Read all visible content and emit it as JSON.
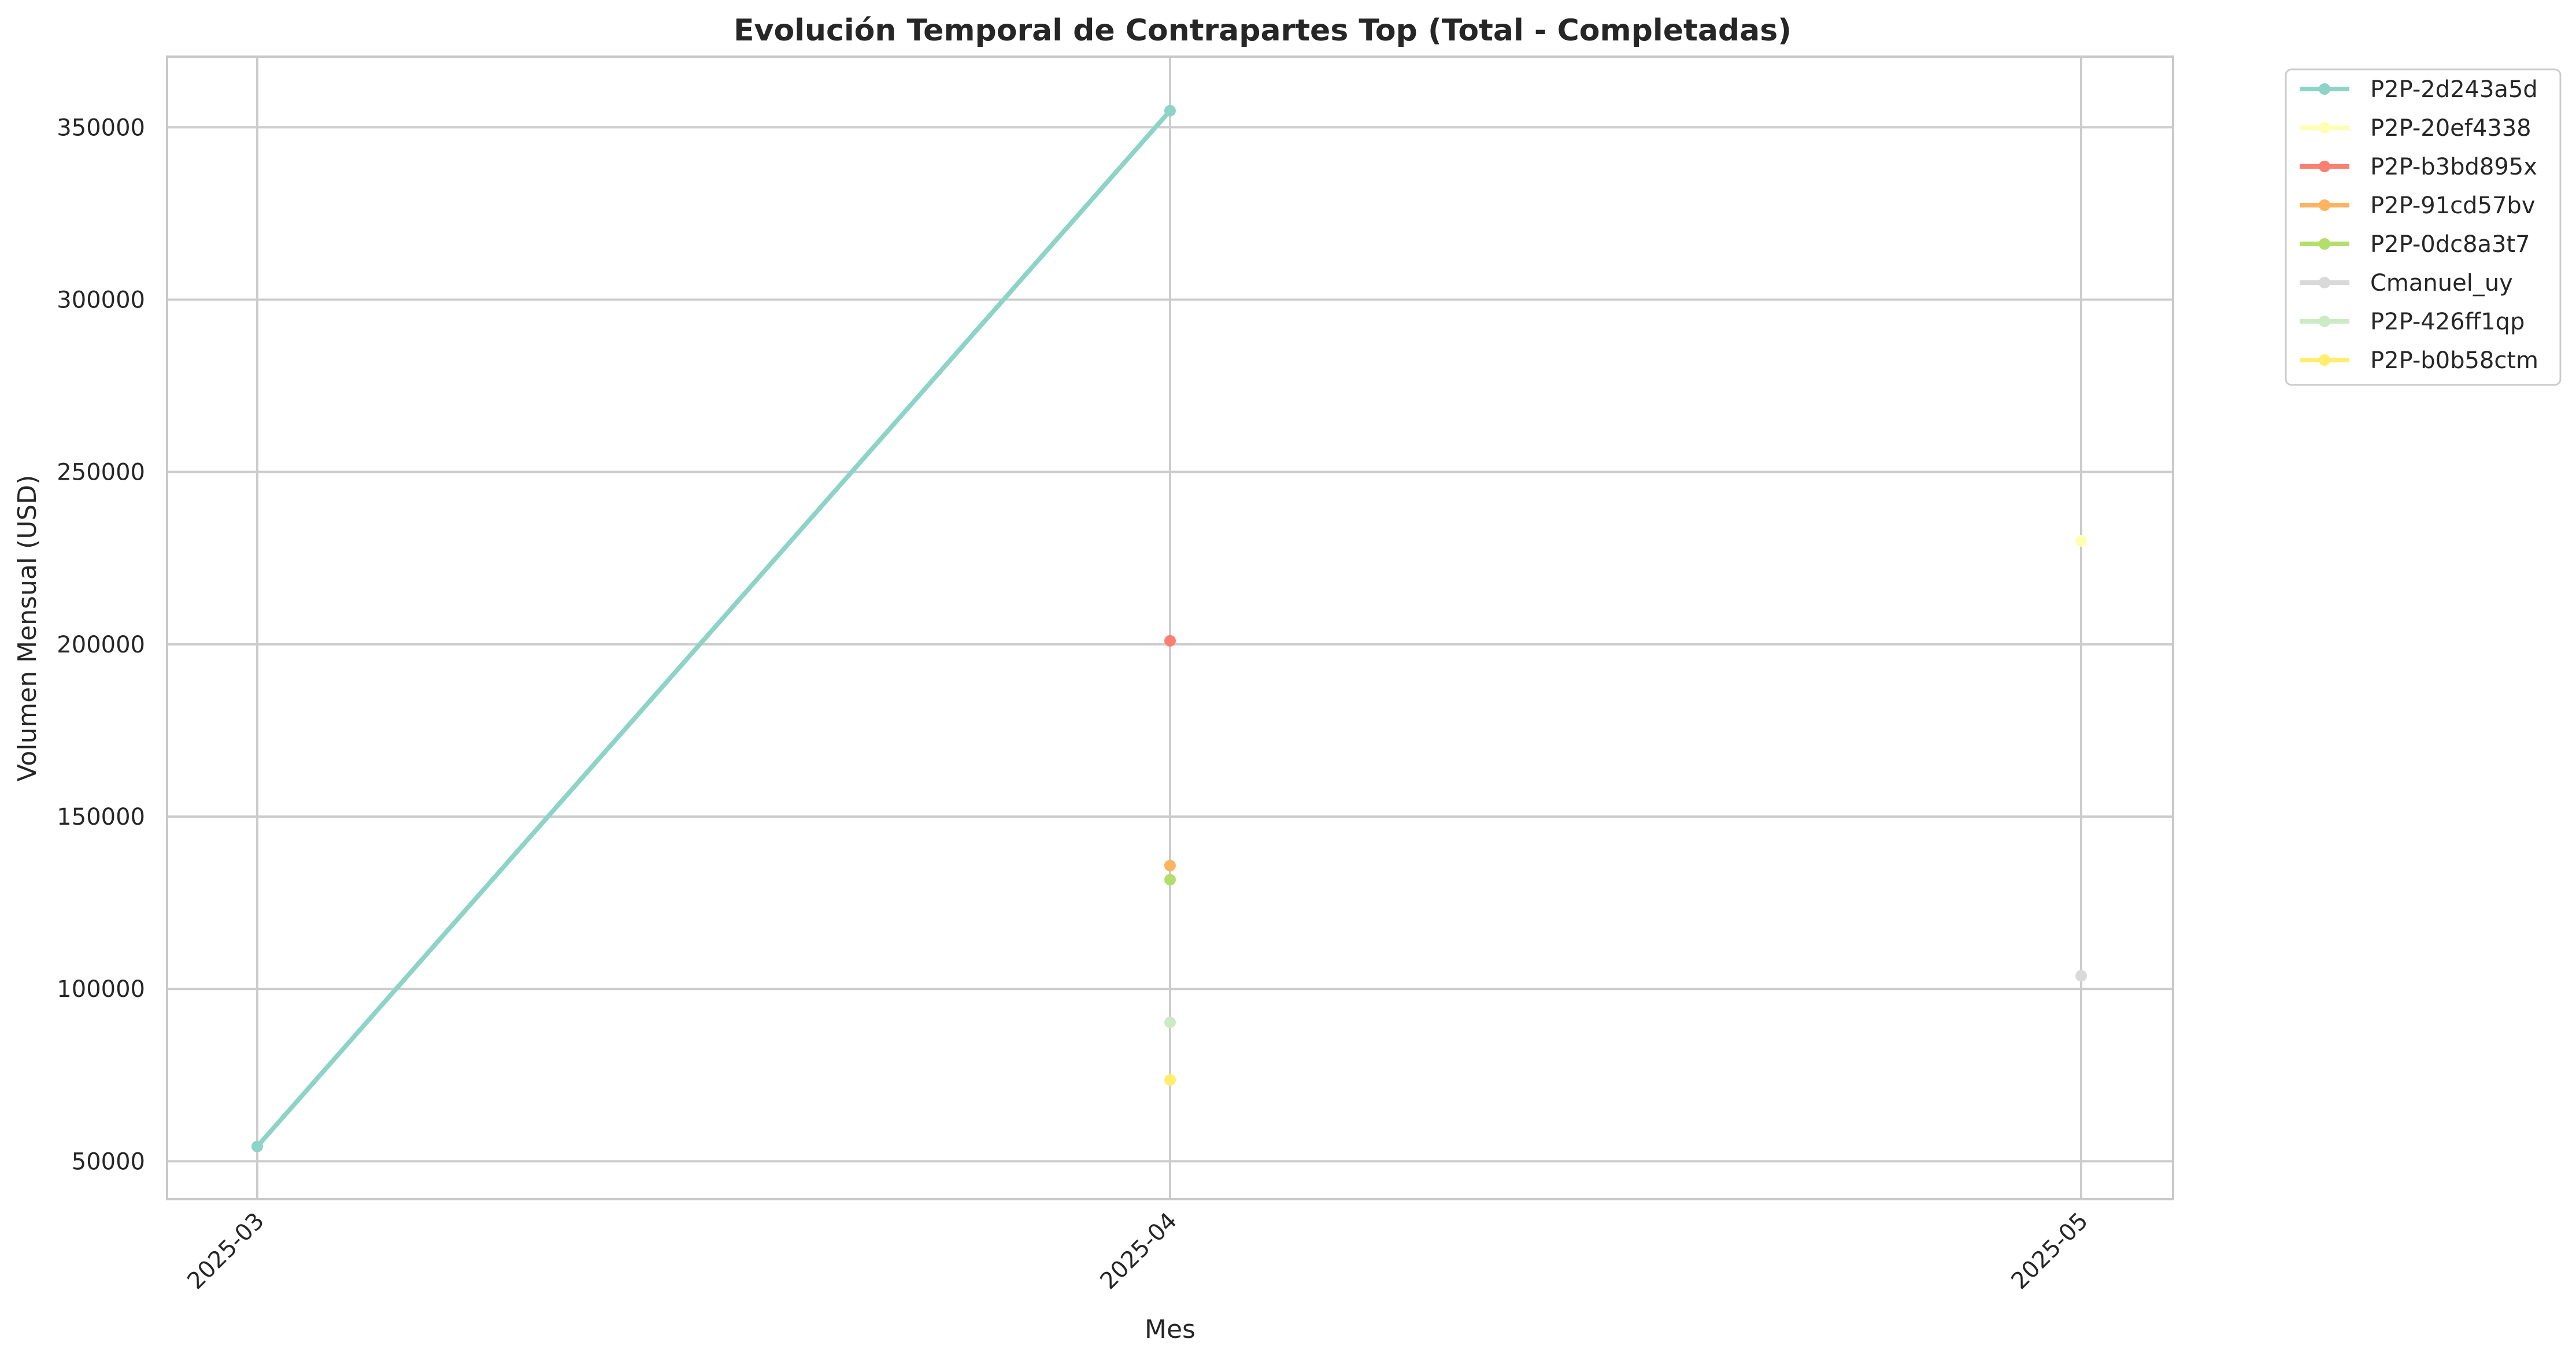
{
  "chart_data": {
    "type": "line",
    "title": "Evolución Temporal de Contrapartes Top (Total - Completadas)",
    "xlabel": "Mes",
    "ylabel": "Volumen Mensual (USD)",
    "x": [
      "2025-03",
      "2025-04",
      "2025-05"
    ],
    "yticks": [
      50000,
      100000,
      150000,
      200000,
      250000,
      300000,
      350000
    ],
    "ylim": [
      39000,
      370500
    ],
    "grid": true,
    "legend_position": "outside-top-right",
    "series": [
      {
        "name": "P2P-2d243a5d",
        "color": "#8dd3c7",
        "values": [
          54300,
          354800,
          null
        ]
      },
      {
        "name": "P2P-20ef4338",
        "color": "#ffffb3",
        "values": [
          null,
          null,
          230000
        ]
      },
      {
        "name": "P2P-b3bd895x",
        "color": "#fb8072",
        "values": [
          null,
          201000,
          null
        ]
      },
      {
        "name": "P2P-91cd57bv",
        "color": "#fdb462",
        "values": [
          null,
          135800,
          null
        ]
      },
      {
        "name": "P2P-0dc8a3t7",
        "color": "#b3de69",
        "values": [
          null,
          131700,
          null
        ]
      },
      {
        "name": "Cmanuel_uy",
        "color": "#d9d9d9",
        "values": [
          null,
          null,
          103800
        ]
      },
      {
        "name": "P2P-426ff1qp",
        "color": "#ccebc5",
        "values": [
          null,
          90300,
          null
        ]
      },
      {
        "name": "P2P-b0b58ctm",
        "color": "#ffed6f",
        "values": [
          null,
          73600,
          null
        ]
      }
    ]
  }
}
